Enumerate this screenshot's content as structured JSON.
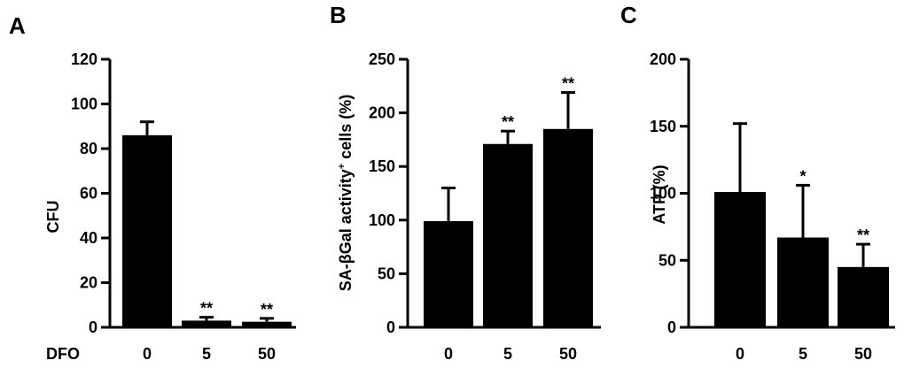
{
  "chart_data": [
    {
      "panel_label": "A",
      "type": "bar",
      "xlabel": "DFO",
      "ylabel": "CFU",
      "categories": [
        "0",
        "5",
        "50"
      ],
      "values": [
        86,
        3,
        2.5
      ],
      "errors": [
        6,
        1.5,
        1.5
      ],
      "significance": [
        "",
        "**",
        "**"
      ],
      "ylim": [
        0,
        120
      ],
      "yticks": [
        0,
        20,
        40,
        60,
        80,
        100,
        120
      ]
    },
    {
      "panel_label": "B",
      "type": "bar",
      "xlabel": "",
      "ylabel": "SA-βGal activity",
      "ylabel_sup": "+",
      "ylabel_suffix": " cells (%)",
      "categories": [
        "0",
        "5",
        "50"
      ],
      "values": [
        99,
        171,
        185
      ],
      "errors": [
        31,
        12,
        34
      ],
      "significance": [
        "",
        "**",
        "**"
      ],
      "ylim": [
        0,
        250
      ],
      "yticks": [
        0,
        50,
        100,
        150,
        200,
        250
      ]
    },
    {
      "panel_label": "C",
      "type": "bar",
      "xlabel": "",
      "ylabel": "ATP (%)",
      "categories": [
        "0",
        "5",
        "50"
      ],
      "values": [
        101,
        67,
        45
      ],
      "errors": [
        51,
        39,
        17
      ],
      "significance": [
        "",
        "*",
        "**"
      ],
      "ylim": [
        0,
        200
      ],
      "yticks": [
        0,
        50,
        100,
        150,
        200
      ]
    }
  ],
  "colors": {
    "bar": "#000000",
    "axis": "#000000"
  }
}
